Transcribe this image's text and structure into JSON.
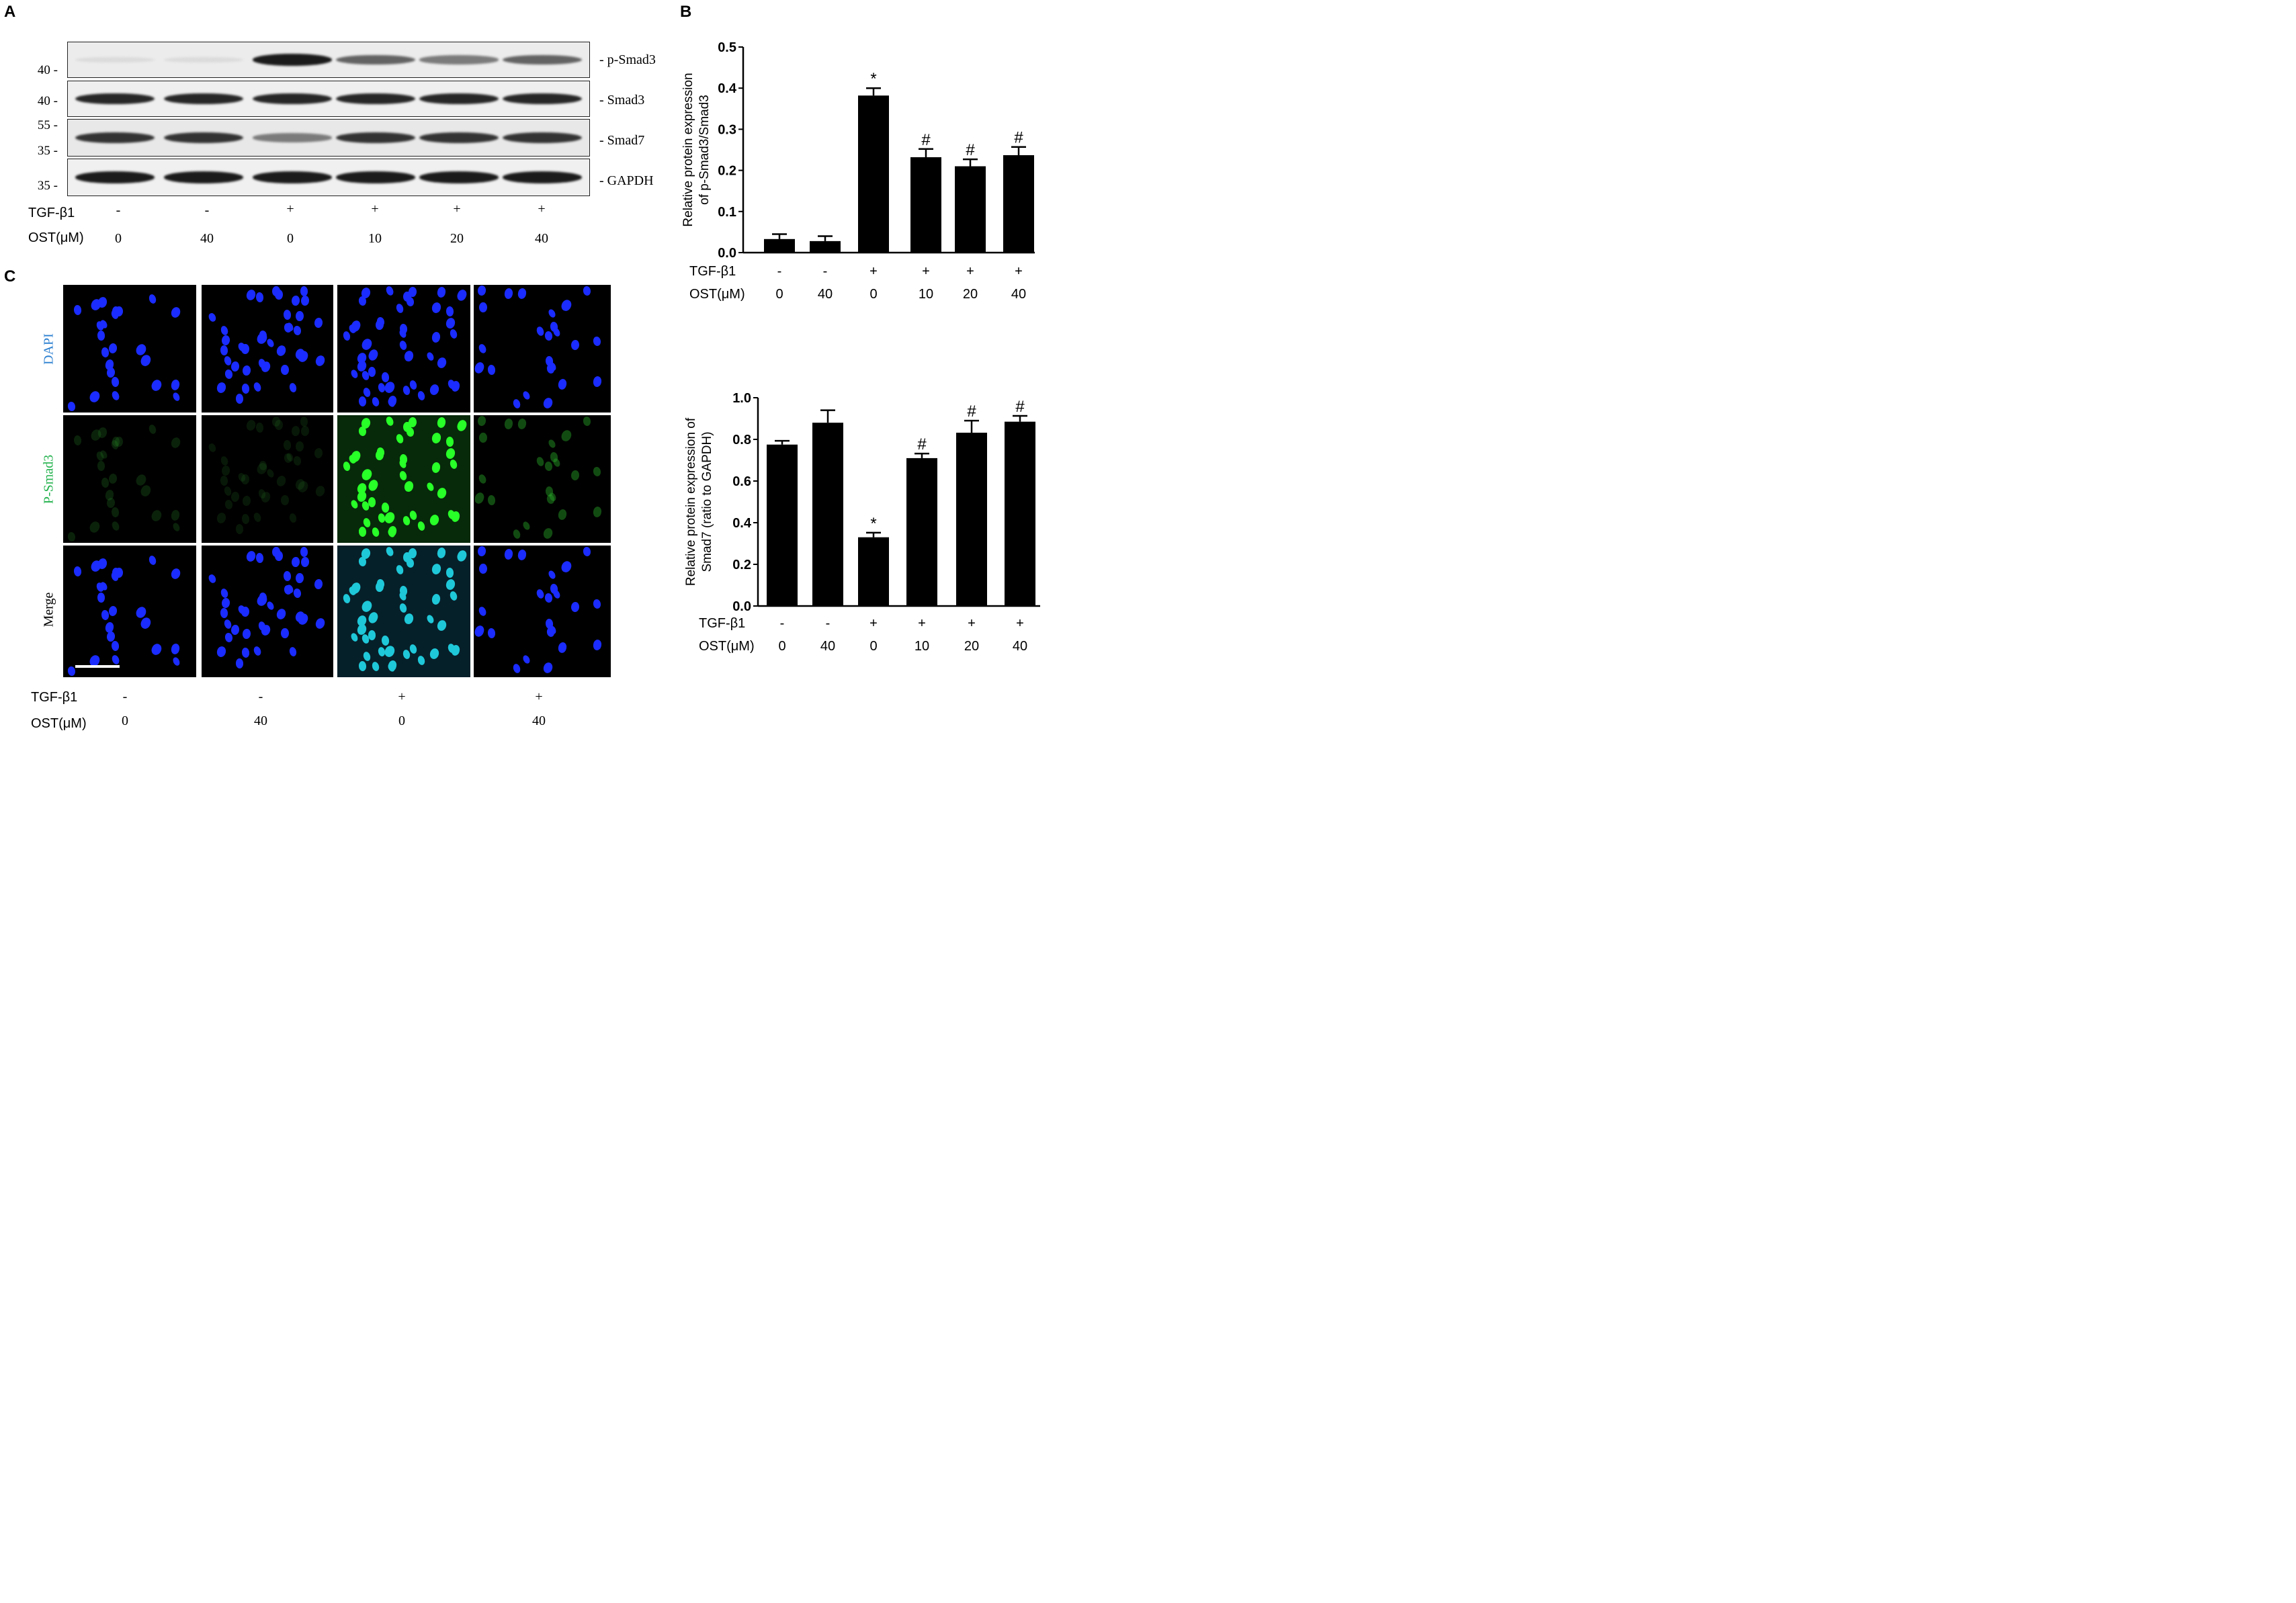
{
  "panel_labels": {
    "a": "A",
    "b": "B",
    "c": "C"
  },
  "western_blot": {
    "bands": [
      {
        "name": "- p-Smad3",
        "markers": [
          "40 -"
        ],
        "intensities": [
          0.15,
          0.15,
          0.95,
          0.65,
          0.55,
          0.65
        ]
      },
      {
        "name": "- Smad3",
        "markers": [
          "40 -"
        ],
        "intensities": [
          0.9,
          0.9,
          0.9,
          0.9,
          0.9,
          0.9
        ]
      },
      {
        "name": "- Smad7",
        "markers": [
          "55 -",
          "35 -"
        ],
        "intensities": [
          0.85,
          0.85,
          0.55,
          0.85,
          0.85,
          0.85
        ]
      },
      {
        "name": "- GAPDH",
        "markers": [
          "35 -"
        ],
        "intensities": [
          0.95,
          0.95,
          0.95,
          0.95,
          0.95,
          0.95
        ]
      }
    ],
    "treatments": {
      "tgf_label": "TGF-β1",
      "tgf": [
        "-",
        "-",
        "+",
        "+",
        "+",
        "+"
      ],
      "ost_label": "OST(μM)",
      "ost": [
        "0",
        "40",
        "0",
        "10",
        "20",
        "40"
      ]
    }
  },
  "chart_data": [
    {
      "type": "bar",
      "ylabel_line1": "Relative protein expression",
      "ylabel_line2": "of p-Smad3/Smad3",
      "ylim": [
        0,
        0.5
      ],
      "yticks": [
        "0.0",
        "0.1",
        "0.2",
        "0.3",
        "0.4",
        "0.5"
      ],
      "values": [
        0.033,
        0.028,
        0.382,
        0.232,
        0.21,
        0.237
      ],
      "errors": [
        0.012,
        0.012,
        0.018,
        0.02,
        0.017,
        0.02
      ],
      "annotations": [
        "",
        "",
        "*",
        "#",
        "#",
        "#"
      ],
      "tgf_label": "TGF-β1",
      "tgf": [
        "-",
        "-",
        "+",
        "+",
        "+",
        "+"
      ],
      "ost_label": "OST(μM)",
      "ost": [
        "0",
        "40",
        "0",
        "10",
        "20",
        "40"
      ]
    },
    {
      "type": "bar",
      "ylabel_line1": "Relative protein expression of",
      "ylabel_line2": "Smad7 (ratio to GAPDH)",
      "ylim": [
        0,
        1.0
      ],
      "yticks": [
        "0.0",
        "0.2",
        "0.4",
        "0.6",
        "0.8",
        "1.0"
      ],
      "values": [
        0.775,
        0.88,
        0.33,
        0.71,
        0.832,
        0.885
      ],
      "errors": [
        0.018,
        0.06,
        0.022,
        0.022,
        0.058,
        0.028
      ],
      "annotations": [
        "",
        "",
        "*",
        "#",
        "#",
        "#"
      ],
      "tgf_label": "TGF-β1",
      "tgf": [
        "-",
        "-",
        "+",
        "+",
        "+",
        "+"
      ],
      "ost_label": "OST(μM)",
      "ost": [
        "0",
        "40",
        "0",
        "10",
        "20",
        "40"
      ]
    }
  ],
  "microscopy": {
    "row_labels": [
      "DAPI",
      "P-Smad3",
      "Merge"
    ],
    "row_label_colors": [
      "#2b7fd0",
      "#22b14c",
      "#000000"
    ],
    "columns": [
      {
        "tgf": "-",
        "ost": "0",
        "green": 0.12
      },
      {
        "tgf": "-",
        "ost": "40",
        "green": 0.05
      },
      {
        "tgf": "+",
        "ost": "0",
        "green": 1.0
      },
      {
        "tgf": "+",
        "ost": "40",
        "green": 0.35
      }
    ],
    "tgf_label": "TGF-β1",
    "ost_label": "OST(μM)"
  }
}
